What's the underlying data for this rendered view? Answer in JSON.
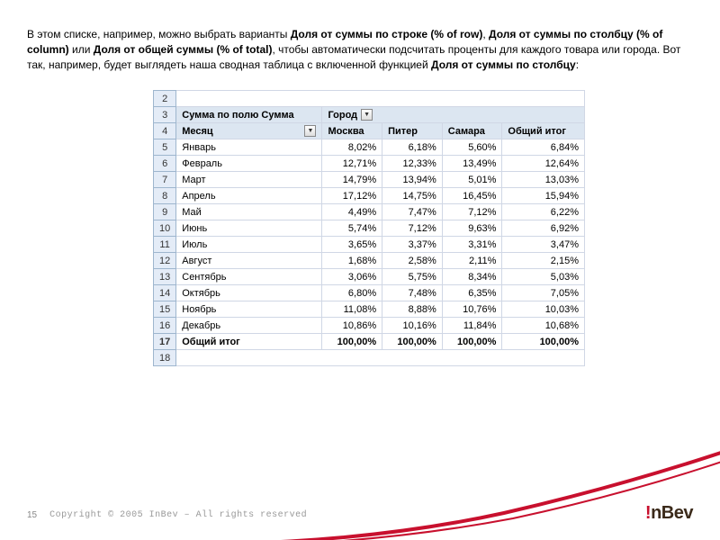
{
  "intro": {
    "p1a": "В этом списке, например, можно выбрать варианты ",
    "b1": "Доля от суммы по строке (% of row)",
    "p1b": ", ",
    "b2": "Доля от суммы по столбцу (% of column)",
    "p1c": " или ",
    "b3": "Доля от общей суммы (% of total)",
    "p1d": ", чтобы автоматически подсчитать проценты для каждого товара или города. Вот так, например, будет выглядеть наша сводная таблица с включенной функцией ",
    "b4": "Доля от суммы по столбцу",
    "p1e": ":"
  },
  "pivot": {
    "header1": "Сумма по полю Сумма",
    "header2": "Город",
    "rowlabel": "Месяц",
    "cols": [
      "Москва",
      "Питер",
      "Самара",
      "Общий итог"
    ],
    "row_numbers": [
      "2",
      "3",
      "4",
      "5",
      "6",
      "7",
      "8",
      "9",
      "10",
      "11",
      "12",
      "13",
      "14",
      "15",
      "16",
      "17",
      "18"
    ],
    "rows": [
      {
        "m": "Январь",
        "v": [
          "8,02%",
          "6,18%",
          "5,60%",
          "6,84%"
        ]
      },
      {
        "m": "Февраль",
        "v": [
          "12,71%",
          "12,33%",
          "13,49%",
          "12,64%"
        ]
      },
      {
        "m": "Март",
        "v": [
          "14,79%",
          "13,94%",
          "5,01%",
          "13,03%"
        ]
      },
      {
        "m": "Апрель",
        "v": [
          "17,12%",
          "14,75%",
          "16,45%",
          "15,94%"
        ]
      },
      {
        "m": "Май",
        "v": [
          "4,49%",
          "7,47%",
          "7,12%",
          "6,22%"
        ]
      },
      {
        "m": "Июнь",
        "v": [
          "5,74%",
          "7,12%",
          "9,63%",
          "6,92%"
        ]
      },
      {
        "m": "Июль",
        "v": [
          "3,65%",
          "3,37%",
          "3,31%",
          "3,47%"
        ]
      },
      {
        "m": "Август",
        "v": [
          "1,68%",
          "2,58%",
          "2,11%",
          "2,15%"
        ]
      },
      {
        "m": "Сентябрь",
        "v": [
          "3,06%",
          "5,75%",
          "8,34%",
          "5,03%"
        ]
      },
      {
        "m": "Октябрь",
        "v": [
          "6,80%",
          "7,48%",
          "6,35%",
          "7,05%"
        ]
      },
      {
        "m": "Ноябрь",
        "v": [
          "11,08%",
          "8,88%",
          "10,76%",
          "10,03%"
        ]
      },
      {
        "m": "Декабрь",
        "v": [
          "10,86%",
          "10,16%",
          "11,84%",
          "10,68%"
        ]
      }
    ],
    "total_label": "Общий итог",
    "total_values": [
      "100,00%",
      "100,00%",
      "100,00%",
      "100,00%"
    ]
  },
  "footer": {
    "page": "15",
    "copy": "Copyright © 2005 InBev – All rights reserved"
  },
  "logo": {
    "bang": "!",
    "n": "n",
    "rest": "Bev"
  },
  "colors": {
    "swoosh": "#c8102e"
  }
}
